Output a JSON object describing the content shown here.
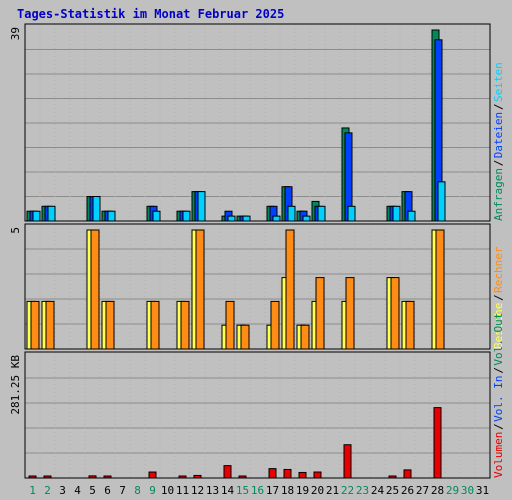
{
  "title": "Tages-Statistik im Monat Februar 2025",
  "colors": {
    "background": "#c0c0c0",
    "title": "#0000c8",
    "hits": "#008a5a",
    "files": "#0040ff",
    "pages": "#00d0ff",
    "visits": "#ffff50",
    "sites": "#ff8c14",
    "kbytes": "#e60000",
    "weekday_label": "#000000",
    "weekend_label": "#008a5a"
  },
  "chart_data": [
    {
      "type": "bar",
      "panel": "requests",
      "ymax_label": "39",
      "ylim": [
        0,
        39
      ],
      "legend": [
        {
          "text": "Anfragen",
          "color": "#008a5a"
        },
        {
          "text": "Dateien",
          "color": "#0040ff"
        },
        {
          "text": "Seiten",
          "color": "#00d0ff"
        }
      ],
      "series": [
        {
          "name": "Anfragen",
          "values": [
            2,
            3,
            0,
            0,
            5,
            2,
            0,
            0,
            3,
            0,
            2,
            6,
            0,
            1,
            1,
            0,
            3,
            7,
            2,
            4,
            0,
            19,
            0,
            0,
            3,
            6,
            0,
            39,
            0,
            0,
            0
          ]
        },
        {
          "name": "Dateien",
          "values": [
            2,
            3,
            0,
            0,
            5,
            2,
            0,
            0,
            3,
            0,
            2,
            6,
            0,
            2,
            1,
            0,
            3,
            7,
            2,
            3,
            0,
            18,
            0,
            0,
            3,
            6,
            0,
            37,
            0,
            0,
            0
          ]
        },
        {
          "name": "Seiten",
          "values": [
            2,
            3,
            0,
            0,
            5,
            2,
            0,
            0,
            2,
            0,
            2,
            6,
            0,
            1,
            1,
            0,
            1,
            3,
            1,
            3,
            0,
            3,
            0,
            0,
            3,
            2,
            0,
            8,
            0,
            0,
            0
          ]
        }
      ]
    },
    {
      "type": "bar",
      "panel": "visits",
      "ymax_label": "5",
      "ylim": [
        0,
        5
      ],
      "legend": [
        {
          "text": "Besuche",
          "color": "#ffff50"
        },
        {
          "text": "Rechner",
          "color": "#ff8c14"
        }
      ],
      "series": [
        {
          "name": "Besuche",
          "values": [
            2,
            2,
            0,
            0,
            5,
            2,
            0,
            0,
            2,
            0,
            2,
            5,
            0,
            1,
            1,
            0,
            1,
            3,
            1,
            2,
            0,
            2,
            0,
            0,
            3,
            2,
            0,
            5,
            0,
            0,
            0
          ]
        },
        {
          "name": "Rechner",
          "values": [
            2,
            2,
            0,
            0,
            5,
            2,
            0,
            0,
            2,
            0,
            2,
            5,
            0,
            2,
            1,
            0,
            2,
            5,
            1,
            3,
            0,
            3,
            0,
            0,
            3,
            2,
            0,
            5,
            0,
            0,
            0
          ]
        }
      ]
    },
    {
      "type": "bar",
      "panel": "volume",
      "ymax_label": "281.25 KB",
      "ylim": [
        0,
        281.25
      ],
      "legend": [
        {
          "text": "Volumen",
          "color": "#e60000"
        },
        {
          "text": "Vol. In",
          "color": "#0040ff"
        },
        {
          "text": "Vol. Out",
          "color": "#008a5a"
        }
      ],
      "series": [
        {
          "name": "Volumen",
          "values": [
            4,
            4,
            0,
            0,
            5,
            4,
            0,
            0,
            14,
            0,
            4,
            6,
            0,
            29,
            3,
            0,
            22,
            20,
            13,
            14,
            0,
            78,
            0,
            0,
            4,
            19,
            0,
            165,
            0,
            0,
            0
          ]
        }
      ]
    }
  ],
  "days": [
    {
      "label": "1",
      "weekend": true
    },
    {
      "label": "2",
      "weekend": true
    },
    {
      "label": "3",
      "weekend": false
    },
    {
      "label": "4",
      "weekend": false
    },
    {
      "label": "5",
      "weekend": false
    },
    {
      "label": "6",
      "weekend": false
    },
    {
      "label": "7",
      "weekend": false
    },
    {
      "label": "8",
      "weekend": true
    },
    {
      "label": "9",
      "weekend": true
    },
    {
      "label": "10",
      "weekend": false
    },
    {
      "label": "11",
      "weekend": false
    },
    {
      "label": "12",
      "weekend": false
    },
    {
      "label": "13",
      "weekend": false
    },
    {
      "label": "14",
      "weekend": false
    },
    {
      "label": "15",
      "weekend": true
    },
    {
      "label": "16",
      "weekend": true
    },
    {
      "label": "17",
      "weekend": false
    },
    {
      "label": "18",
      "weekend": false
    },
    {
      "label": "19",
      "weekend": false
    },
    {
      "label": "20",
      "weekend": false
    },
    {
      "label": "21",
      "weekend": false
    },
    {
      "label": "22",
      "weekend": true
    },
    {
      "label": "23",
      "weekend": true
    },
    {
      "label": "24",
      "weekend": false
    },
    {
      "label": "25",
      "weekend": false
    },
    {
      "label": "26",
      "weekend": false
    },
    {
      "label": "27",
      "weekend": false
    },
    {
      "label": "28",
      "weekend": false
    },
    {
      "label": "29",
      "weekend": true
    },
    {
      "label": "30",
      "weekend": true
    },
    {
      "label": "31",
      "weekend": false
    }
  ]
}
